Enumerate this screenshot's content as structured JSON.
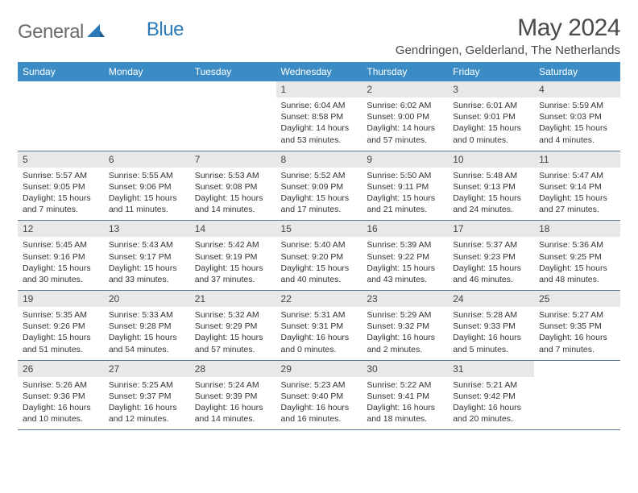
{
  "brand": {
    "part1": "General",
    "part2": "Blue"
  },
  "title": "May 2024",
  "location": "Gendringen, Gelderland, The Netherlands",
  "colors": {
    "header_bg": "#3b8bc4",
    "header_text": "#ffffff",
    "daynum_bg": "#e8e8e8",
    "border": "#5a7a9a",
    "logo_gray": "#6b6b6b",
    "logo_blue": "#2a7ab8",
    "text": "#333333"
  },
  "weekdays": [
    "Sunday",
    "Monday",
    "Tuesday",
    "Wednesday",
    "Thursday",
    "Friday",
    "Saturday"
  ],
  "weeks": [
    [
      {
        "n": "",
        "sunrise": "",
        "sunset": "",
        "daylight": ""
      },
      {
        "n": "",
        "sunrise": "",
        "sunset": "",
        "daylight": ""
      },
      {
        "n": "",
        "sunrise": "",
        "sunset": "",
        "daylight": ""
      },
      {
        "n": "1",
        "sunrise": "Sunrise: 6:04 AM",
        "sunset": "Sunset: 8:58 PM",
        "daylight": "Daylight: 14 hours and 53 minutes."
      },
      {
        "n": "2",
        "sunrise": "Sunrise: 6:02 AM",
        "sunset": "Sunset: 9:00 PM",
        "daylight": "Daylight: 14 hours and 57 minutes."
      },
      {
        "n": "3",
        "sunrise": "Sunrise: 6:01 AM",
        "sunset": "Sunset: 9:01 PM",
        "daylight": "Daylight: 15 hours and 0 minutes."
      },
      {
        "n": "4",
        "sunrise": "Sunrise: 5:59 AM",
        "sunset": "Sunset: 9:03 PM",
        "daylight": "Daylight: 15 hours and 4 minutes."
      }
    ],
    [
      {
        "n": "5",
        "sunrise": "Sunrise: 5:57 AM",
        "sunset": "Sunset: 9:05 PM",
        "daylight": "Daylight: 15 hours and 7 minutes."
      },
      {
        "n": "6",
        "sunrise": "Sunrise: 5:55 AM",
        "sunset": "Sunset: 9:06 PM",
        "daylight": "Daylight: 15 hours and 11 minutes."
      },
      {
        "n": "7",
        "sunrise": "Sunrise: 5:53 AM",
        "sunset": "Sunset: 9:08 PM",
        "daylight": "Daylight: 15 hours and 14 minutes."
      },
      {
        "n": "8",
        "sunrise": "Sunrise: 5:52 AM",
        "sunset": "Sunset: 9:09 PM",
        "daylight": "Daylight: 15 hours and 17 minutes."
      },
      {
        "n": "9",
        "sunrise": "Sunrise: 5:50 AM",
        "sunset": "Sunset: 9:11 PM",
        "daylight": "Daylight: 15 hours and 21 minutes."
      },
      {
        "n": "10",
        "sunrise": "Sunrise: 5:48 AM",
        "sunset": "Sunset: 9:13 PM",
        "daylight": "Daylight: 15 hours and 24 minutes."
      },
      {
        "n": "11",
        "sunrise": "Sunrise: 5:47 AM",
        "sunset": "Sunset: 9:14 PM",
        "daylight": "Daylight: 15 hours and 27 minutes."
      }
    ],
    [
      {
        "n": "12",
        "sunrise": "Sunrise: 5:45 AM",
        "sunset": "Sunset: 9:16 PM",
        "daylight": "Daylight: 15 hours and 30 minutes."
      },
      {
        "n": "13",
        "sunrise": "Sunrise: 5:43 AM",
        "sunset": "Sunset: 9:17 PM",
        "daylight": "Daylight: 15 hours and 33 minutes."
      },
      {
        "n": "14",
        "sunrise": "Sunrise: 5:42 AM",
        "sunset": "Sunset: 9:19 PM",
        "daylight": "Daylight: 15 hours and 37 minutes."
      },
      {
        "n": "15",
        "sunrise": "Sunrise: 5:40 AM",
        "sunset": "Sunset: 9:20 PM",
        "daylight": "Daylight: 15 hours and 40 minutes."
      },
      {
        "n": "16",
        "sunrise": "Sunrise: 5:39 AM",
        "sunset": "Sunset: 9:22 PM",
        "daylight": "Daylight: 15 hours and 43 minutes."
      },
      {
        "n": "17",
        "sunrise": "Sunrise: 5:37 AM",
        "sunset": "Sunset: 9:23 PM",
        "daylight": "Daylight: 15 hours and 46 minutes."
      },
      {
        "n": "18",
        "sunrise": "Sunrise: 5:36 AM",
        "sunset": "Sunset: 9:25 PM",
        "daylight": "Daylight: 15 hours and 48 minutes."
      }
    ],
    [
      {
        "n": "19",
        "sunrise": "Sunrise: 5:35 AM",
        "sunset": "Sunset: 9:26 PM",
        "daylight": "Daylight: 15 hours and 51 minutes."
      },
      {
        "n": "20",
        "sunrise": "Sunrise: 5:33 AM",
        "sunset": "Sunset: 9:28 PM",
        "daylight": "Daylight: 15 hours and 54 minutes."
      },
      {
        "n": "21",
        "sunrise": "Sunrise: 5:32 AM",
        "sunset": "Sunset: 9:29 PM",
        "daylight": "Daylight: 15 hours and 57 minutes."
      },
      {
        "n": "22",
        "sunrise": "Sunrise: 5:31 AM",
        "sunset": "Sunset: 9:31 PM",
        "daylight": "Daylight: 16 hours and 0 minutes."
      },
      {
        "n": "23",
        "sunrise": "Sunrise: 5:29 AM",
        "sunset": "Sunset: 9:32 PM",
        "daylight": "Daylight: 16 hours and 2 minutes."
      },
      {
        "n": "24",
        "sunrise": "Sunrise: 5:28 AM",
        "sunset": "Sunset: 9:33 PM",
        "daylight": "Daylight: 16 hours and 5 minutes."
      },
      {
        "n": "25",
        "sunrise": "Sunrise: 5:27 AM",
        "sunset": "Sunset: 9:35 PM",
        "daylight": "Daylight: 16 hours and 7 minutes."
      }
    ],
    [
      {
        "n": "26",
        "sunrise": "Sunrise: 5:26 AM",
        "sunset": "Sunset: 9:36 PM",
        "daylight": "Daylight: 16 hours and 10 minutes."
      },
      {
        "n": "27",
        "sunrise": "Sunrise: 5:25 AM",
        "sunset": "Sunset: 9:37 PM",
        "daylight": "Daylight: 16 hours and 12 minutes."
      },
      {
        "n": "28",
        "sunrise": "Sunrise: 5:24 AM",
        "sunset": "Sunset: 9:39 PM",
        "daylight": "Daylight: 16 hours and 14 minutes."
      },
      {
        "n": "29",
        "sunrise": "Sunrise: 5:23 AM",
        "sunset": "Sunset: 9:40 PM",
        "daylight": "Daylight: 16 hours and 16 minutes."
      },
      {
        "n": "30",
        "sunrise": "Sunrise: 5:22 AM",
        "sunset": "Sunset: 9:41 PM",
        "daylight": "Daylight: 16 hours and 18 minutes."
      },
      {
        "n": "31",
        "sunrise": "Sunrise: 5:21 AM",
        "sunset": "Sunset: 9:42 PM",
        "daylight": "Daylight: 16 hours and 20 minutes."
      },
      {
        "n": "",
        "sunrise": "",
        "sunset": "",
        "daylight": ""
      }
    ]
  ]
}
